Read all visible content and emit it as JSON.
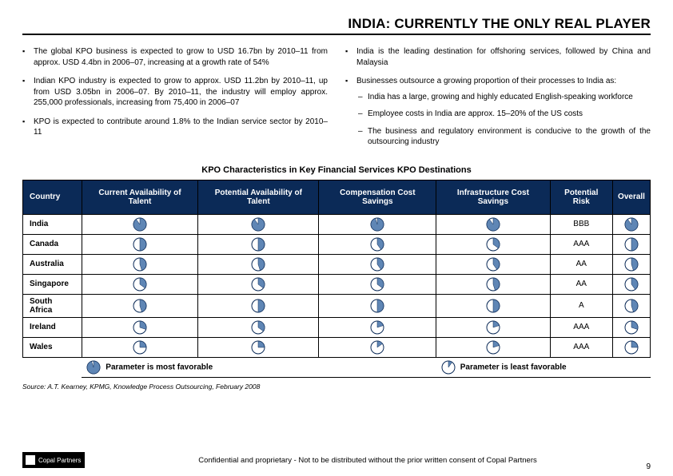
{
  "title": "INDIA: CURRENTLY THE ONLY REAL PLAYER",
  "left_bullets": [
    "The global KPO business is expected to grow to USD 16.7bn by 2010–11 from approx. USD 4.4bn in 2006–07, increasing at a growth rate of 54%",
    "Indian KPO industry is expected to grow to approx. USD 11.2bn by 2010–11, up from USD 3.05bn in 2006–07. By 2010–11, the industry will employ approx. 255,000 professionals, increasing from 75,400 in 2006–07",
    "KPO is expected to contribute around 1.8% to the Indian service sector by 2010–11"
  ],
  "right_bullets": [
    {
      "text": "India is the leading destination for offshoring services, followed by China and Malaysia",
      "sub": []
    },
    {
      "text": "Businesses outsource a growing proportion of their processes to India as:",
      "sub": [
        "India has a large, growing and highly educated English-speaking workforce",
        "Employee costs in India are approx. 15–20% of the US costs",
        "The business and regulatory environment is conducive to the growth of the outsourcing industry"
      ]
    }
  ],
  "table_title": "KPO Characteristics in Key Financial Services KPO Destinations",
  "table": {
    "headers": [
      "Country",
      "Current Availability of Talent",
      "Potential Availability of Talent",
      "Compensation Cost Savings",
      "Infrastructure Cost Savings",
      "Potential Risk",
      "Overall"
    ],
    "rows": [
      {
        "country": "India",
        "cells": [
          0.9,
          0.9,
          0.95,
          0.9,
          "BBB",
          0.9
        ]
      },
      {
        "country": "Canada",
        "cells": [
          0.5,
          0.5,
          0.4,
          0.35,
          "AAA",
          0.5
        ]
      },
      {
        "country": "Australia",
        "cells": [
          0.45,
          0.45,
          0.4,
          0.4,
          "AA",
          0.45
        ]
      },
      {
        "country": "Singapore",
        "cells": [
          0.35,
          0.35,
          0.35,
          0.45,
          "AA",
          0.4
        ]
      },
      {
        "country": "South Africa",
        "cells": [
          0.45,
          0.5,
          0.5,
          0.5,
          "A",
          0.45
        ]
      },
      {
        "country": "Ireland",
        "cells": [
          0.3,
          0.35,
          0.2,
          0.2,
          "AAA",
          0.3
        ]
      },
      {
        "country": "Wales",
        "cells": [
          0.25,
          0.25,
          0.15,
          0.2,
          "AAA",
          0.25
        ]
      }
    ],
    "pie_fill": "#5f86b5",
    "pie_stroke": "#0b2a57",
    "pie_radius": 8,
    "legend_left": "Parameter is most favorable",
    "legend_right": "Parameter is least favorable",
    "legend_left_val": 0.95,
    "legend_right_val": 0.1
  },
  "source": "Source: A.T. Kearney, KPMG, Knowledge Process Outsourcing, February 2008",
  "confidential": "Confidential and proprietary - Not to be distributed without the prior written consent of Copal Partners",
  "logo_text": "Copal Partners",
  "page_number": "9"
}
